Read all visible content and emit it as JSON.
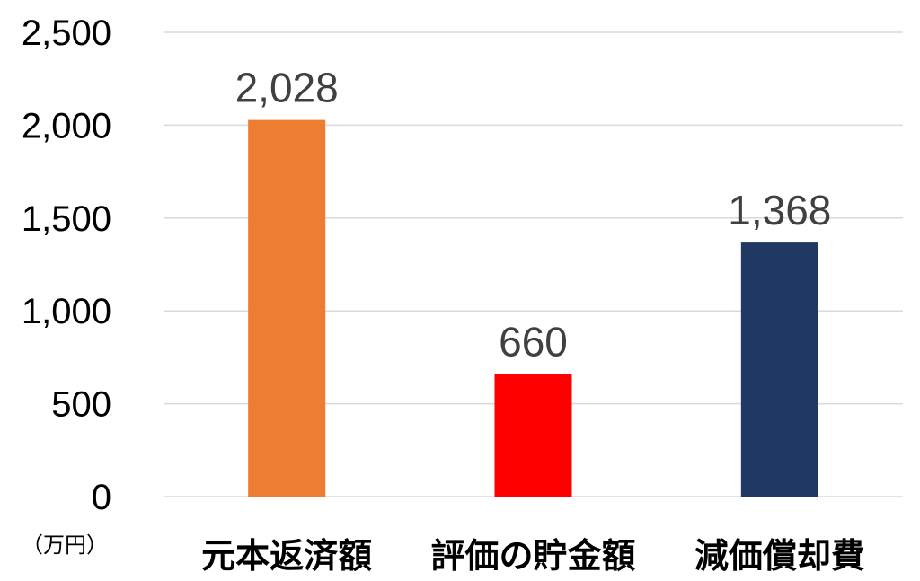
{
  "chart_data": {
    "type": "bar",
    "categories": [
      "元本返済額",
      "評価の貯金額",
      "減価償却費"
    ],
    "values": [
      2028,
      660,
      1368
    ],
    "value_labels": [
      "2,028",
      "660",
      "1,368"
    ],
    "colors": [
      "#ED7D31",
      "#FF0000",
      "#203864"
    ],
    "ylim": [
      0,
      2500
    ],
    "yticks": [
      0,
      500,
      1000,
      1500,
      2000,
      2500
    ],
    "ytick_labels": [
      "0",
      "500",
      "1,000",
      "1,500",
      "2,000",
      "2,500"
    ],
    "y_unit": "（万円）",
    "grid": true,
    "legend": "none",
    "title": "",
    "xlabel": "",
    "ylabel": ""
  }
}
